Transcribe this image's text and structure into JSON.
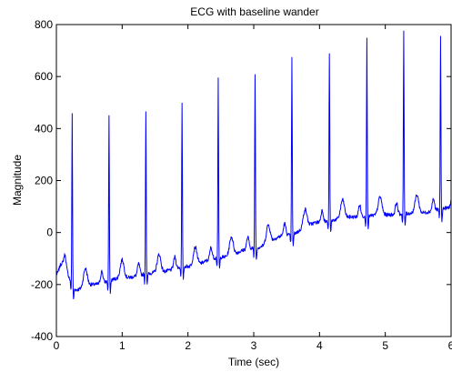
{
  "chart_data": {
    "type": "line",
    "title": "ECG with baseline wander",
    "xlabel": "Time (sec)",
    "ylabel": "Magnitude",
    "xlim": [
      0,
      6
    ],
    "ylim": [
      -400,
      800
    ],
    "xticks": [
      0,
      1,
      2,
      3,
      4,
      5,
      6
    ],
    "yticks": [
      -400,
      -200,
      0,
      200,
      400,
      600,
      800
    ],
    "grid": false,
    "legend": "none",
    "line_color": "#0000ff",
    "series": [
      {
        "beats": [
          {
            "t": 0.24,
            "r_peak": 470,
            "baseline": -190
          },
          {
            "t": 0.8,
            "r_peak": 460,
            "baseline": -175
          },
          {
            "t": 1.36,
            "r_peak": 470,
            "baseline": -160
          },
          {
            "t": 1.91,
            "r_peak": 495,
            "baseline": -135
          },
          {
            "t": 2.46,
            "r_peak": 590,
            "baseline": -95
          },
          {
            "t": 3.02,
            "r_peak": 615,
            "baseline": -60
          },
          {
            "t": 3.58,
            "r_peak": 675,
            "baseline": -5
          },
          {
            "t": 4.15,
            "r_peak": 695,
            "baseline": 45
          },
          {
            "t": 4.72,
            "r_peak": 745,
            "baseline": 65
          },
          {
            "t": 5.28,
            "r_peak": 770,
            "baseline": 70
          },
          {
            "t": 5.84,
            "r_peak": 745,
            "baseline": 85
          }
        ],
        "baseline_anchors": [
          [
            0.0,
            -160
          ],
          [
            0.08,
            -120
          ],
          [
            0.3,
            -220
          ],
          [
            0.55,
            -200
          ],
          [
            1.0,
            -175
          ],
          [
            1.5,
            -155
          ],
          [
            2.0,
            -130
          ],
          [
            2.5,
            -95
          ],
          [
            3.0,
            -60
          ],
          [
            3.5,
            -10
          ],
          [
            4.0,
            40
          ],
          [
            4.5,
            60
          ],
          [
            5.0,
            68
          ],
          [
            5.5,
            75
          ],
          [
            6.0,
            95
          ]
        ]
      }
    ]
  }
}
